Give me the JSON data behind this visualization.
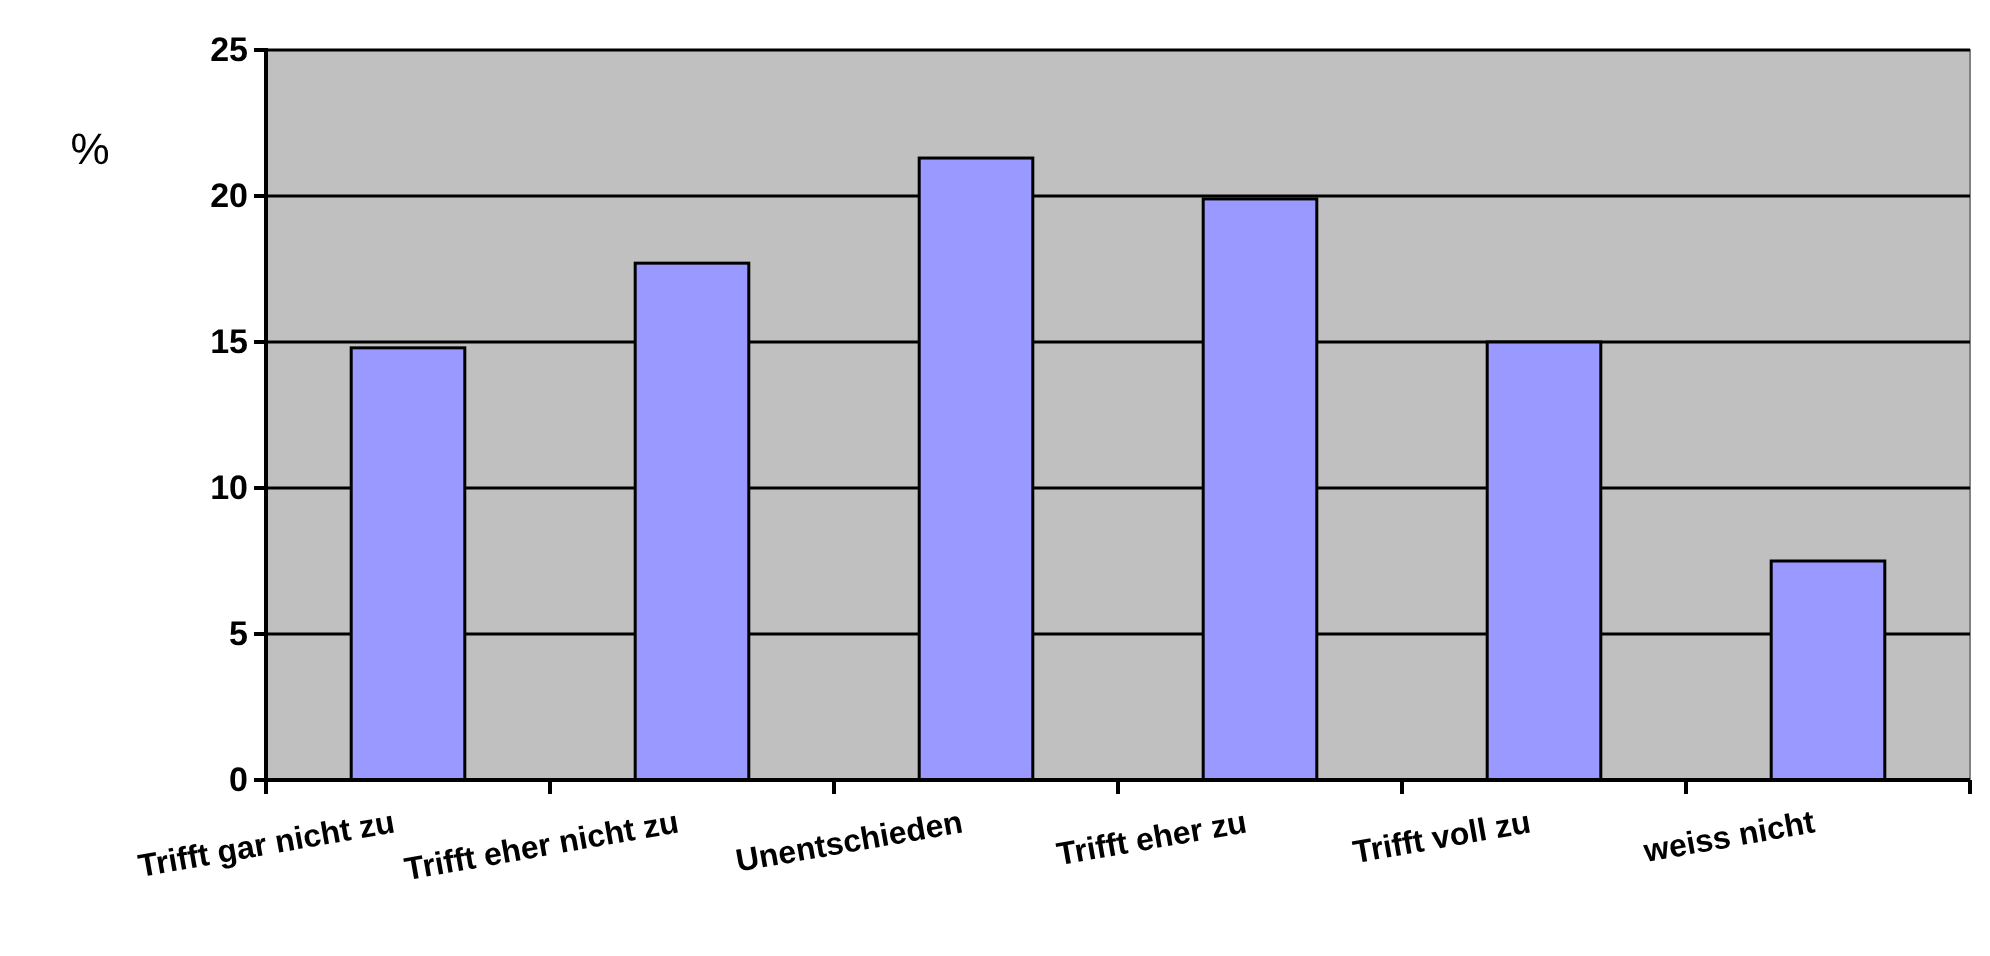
{
  "chart_data": {
    "type": "bar",
    "ylabel": "%",
    "categories": [
      "Trifft gar nicht zu",
      "Trifft eher nicht zu",
      "Unentschieden",
      "Trifft eher zu",
      "Trifft voll zu",
      "weiss nicht"
    ],
    "values": [
      14.8,
      17.7,
      21.3,
      19.9,
      15.0,
      7.5
    ],
    "color": "#9999ff",
    "ylim": [
      0,
      25
    ],
    "yticks": [
      0,
      5,
      10,
      15,
      20,
      25
    ],
    "grid": "y"
  }
}
